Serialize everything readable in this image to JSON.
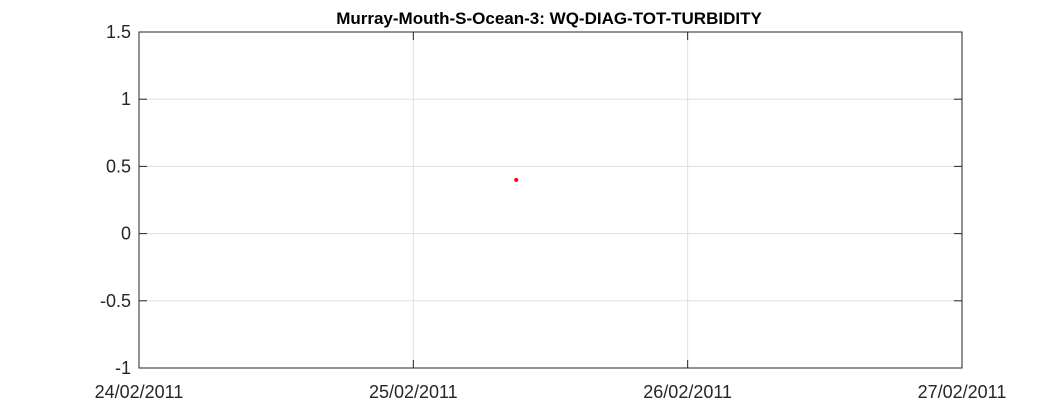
{
  "chart_data": {
    "type": "scatter",
    "title": "Murray-Mouth-S-Ocean-3: WQ-DIAG-TOT-TURBIDITY",
    "xlabel": "",
    "ylabel": "",
    "xlim": [
      "24/02/2011",
      "27/02/2011"
    ],
    "ylim": [
      -1,
      1.5
    ],
    "x_ticks": [
      "24/02/2011",
      "25/02/2011",
      "26/02/2011",
      "27/02/2011"
    ],
    "y_ticks": [
      -1,
      -0.5,
      0,
      0.5,
      1,
      1.5
    ],
    "y_tick_labels": [
      "-1",
      "-0.5",
      "0",
      "0.5",
      "1",
      "1.5"
    ],
    "grid": true,
    "series": [
      {
        "color": "#ff0000",
        "points": [
          {
            "x": "25/02/2011 09:00",
            "y": 0.4
          }
        ]
      }
    ]
  }
}
